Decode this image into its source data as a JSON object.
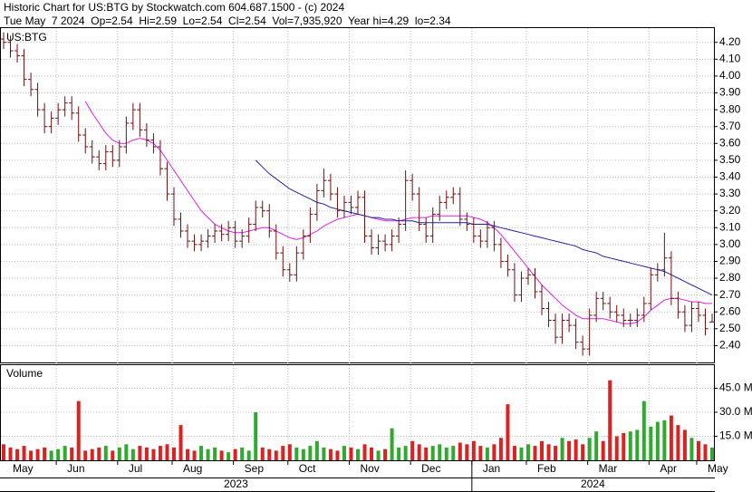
{
  "chart_data": {
    "type": "ohlc",
    "title": "Historic Chart for US:BTG by Stockwatch.com 604.687.1500 - (c) 2024",
    "subtitle": "Tue May  7 2024  Op=2.54  Hi=2.59  Lo=2.54  Cl=2.54  Vol=7,935,920  Year hi=4.29  lo=2.34",
    "symbol": "US:BTG",
    "categories": [
      "May",
      null,
      null,
      null,
      null,
      null,
      null,
      null,
      "Jun",
      null,
      null,
      null,
      null,
      null,
      null,
      null,
      null,
      "Jul",
      null,
      null,
      null,
      null,
      null,
      null,
      null,
      "Aug",
      null,
      null,
      null,
      null,
      null,
      null,
      null,
      null,
      "Sep",
      null,
      null,
      null,
      null,
      null,
      null,
      null,
      "Oct",
      null,
      null,
      null,
      null,
      null,
      null,
      null,
      null,
      "Nov",
      null,
      null,
      null,
      null,
      null,
      null,
      null,
      null,
      "Dec",
      null,
      null,
      null,
      null,
      null,
      null,
      null,
      null,
      "Jan",
      null,
      null,
      null,
      null,
      null,
      null,
      null,
      "Feb",
      null,
      null,
      null,
      null,
      null,
      null,
      null,
      null,
      "Mar",
      null,
      null,
      null,
      null,
      null,
      null,
      null,
      null,
      "Apr",
      null,
      null,
      null,
      null,
      null,
      null,
      "May",
      null,
      null
    ],
    "open": [
      4.22,
      4.2,
      4.15,
      4.12,
      3.98,
      3.92,
      3.8,
      3.7,
      3.75,
      3.8,
      3.84,
      3.78,
      3.65,
      3.58,
      3.52,
      3.48,
      3.55,
      3.5,
      3.58,
      3.72,
      3.8,
      3.68,
      3.62,
      3.58,
      3.45,
      3.3,
      3.15,
      3.08,
      3.02,
      3.0,
      3.02,
      3.05,
      3.08,
      3.06,
      3.1,
      3.02,
      3.05,
      3.12,
      3.22,
      3.2,
      3.08,
      2.95,
      2.85,
      2.82,
      2.95,
      3.05,
      3.18,
      3.32,
      3.38,
      3.3,
      3.2,
      3.25,
      3.22,
      3.28,
      3.05,
      2.98,
      3.02,
      3.0,
      3.05,
      3.12,
      3.38,
      3.3,
      3.12,
      3.05,
      3.18,
      3.25,
      3.28,
      3.3,
      3.15,
      3.12,
      3.05,
      3.02,
      3.1,
      3.0,
      2.9,
      2.85,
      2.7,
      2.8,
      2.82,
      2.72,
      2.62,
      2.55,
      2.45,
      2.55,
      2.52,
      2.42,
      2.38,
      2.58,
      2.68,
      2.65,
      2.6,
      2.58,
      2.55,
      2.55,
      2.58,
      2.65,
      2.82,
      2.85,
      2.92,
      2.68,
      2.6,
      2.52,
      2.62,
      2.58,
      2.54
    ],
    "high": [
      4.26,
      4.24,
      4.19,
      4.16,
      4.02,
      3.96,
      3.84,
      3.79,
      3.84,
      3.88,
      3.88,
      3.82,
      3.69,
      3.62,
      3.56,
      3.59,
      3.59,
      3.62,
      3.76,
      3.84,
      3.84,
      3.72,
      3.66,
      3.62,
      3.49,
      3.34,
      3.19,
      3.12,
      3.06,
      3.06,
      3.09,
      3.12,
      3.12,
      3.14,
      3.14,
      3.09,
      3.16,
      3.26,
      3.26,
      3.24,
      3.12,
      2.99,
      2.89,
      2.99,
      3.09,
      3.22,
      3.36,
      3.45,
      3.42,
      3.34,
      3.29,
      3.29,
      3.32,
      3.32,
      3.09,
      3.06,
      3.06,
      3.09,
      3.16,
      3.44,
      3.42,
      3.34,
      3.16,
      3.22,
      3.29,
      3.32,
      3.34,
      3.34,
      3.19,
      3.16,
      3.09,
      3.14,
      3.14,
      3.04,
      2.94,
      2.89,
      2.84,
      2.86,
      2.86,
      2.76,
      2.66,
      2.59,
      2.59,
      2.59,
      2.56,
      2.46,
      2.62,
      2.72,
      2.72,
      2.69,
      2.64,
      2.62,
      2.59,
      2.62,
      2.69,
      2.86,
      2.89,
      3.07,
      2.96,
      2.72,
      2.64,
      2.66,
      2.66,
      2.62,
      2.59
    ],
    "low": [
      4.16,
      4.11,
      4.08,
      3.94,
      3.88,
      3.76,
      3.66,
      3.66,
      3.71,
      3.76,
      3.74,
      3.61,
      3.54,
      3.48,
      3.44,
      3.44,
      3.46,
      3.46,
      3.54,
      3.68,
      3.64,
      3.58,
      3.54,
      3.41,
      3.26,
      3.11,
      3.04,
      2.98,
      2.96,
      2.96,
      2.98,
      3.01,
      3.02,
      3.02,
      2.98,
      2.98,
      3.01,
      3.08,
      3.16,
      3.04,
      2.91,
      2.81,
      2.78,
      2.78,
      2.91,
      3.01,
      3.14,
      3.28,
      3.26,
      3.16,
      3.16,
      3.18,
      3.18,
      3.01,
      2.94,
      2.94,
      2.96,
      2.96,
      3.01,
      3.08,
      3.26,
      3.08,
      3.01,
      3.01,
      3.14,
      3.21,
      3.24,
      3.11,
      3.08,
      3.01,
      2.98,
      2.98,
      2.96,
      2.86,
      2.81,
      2.66,
      2.66,
      2.76,
      2.68,
      2.58,
      2.51,
      2.41,
      2.41,
      2.48,
      2.38,
      2.34,
      2.34,
      2.54,
      2.61,
      2.56,
      2.54,
      2.51,
      2.51,
      2.51,
      2.54,
      2.61,
      2.78,
      2.81,
      2.64,
      2.56,
      2.48,
      2.48,
      2.54,
      2.46,
      2.54
    ],
    "close": [
      4.2,
      4.15,
      4.12,
      3.98,
      3.92,
      3.8,
      3.7,
      3.75,
      3.8,
      3.84,
      3.78,
      3.65,
      3.58,
      3.52,
      3.48,
      3.55,
      3.5,
      3.58,
      3.72,
      3.8,
      3.68,
      3.62,
      3.58,
      3.45,
      3.3,
      3.15,
      3.08,
      3.02,
      3.0,
      3.02,
      3.05,
      3.08,
      3.06,
      3.1,
      3.02,
      3.05,
      3.12,
      3.22,
      3.2,
      3.08,
      2.95,
      2.85,
      2.82,
      2.95,
      3.05,
      3.18,
      3.32,
      3.38,
      3.3,
      3.2,
      3.25,
      3.22,
      3.28,
      3.05,
      2.98,
      3.02,
      3.0,
      3.05,
      3.12,
      3.38,
      3.3,
      3.12,
      3.05,
      3.18,
      3.25,
      3.28,
      3.3,
      3.15,
      3.12,
      3.05,
      3.02,
      3.1,
      3.0,
      2.9,
      2.85,
      2.7,
      2.8,
      2.82,
      2.72,
      2.62,
      2.55,
      2.45,
      2.55,
      2.52,
      2.42,
      2.38,
      2.58,
      2.68,
      2.65,
      2.6,
      2.58,
      2.55,
      2.55,
      2.58,
      2.65,
      2.82,
      2.85,
      2.92,
      2.68,
      2.6,
      2.52,
      2.62,
      2.58,
      2.5,
      2.54
    ],
    "color": "#6b1010",
    "ylim": [
      2.3,
      4.29
    ],
    "yticks": [
      {
        "value": 2.4,
        "label": "2.40"
      },
      {
        "value": 2.5,
        "label": "2.50"
      },
      {
        "value": 2.6,
        "label": "2.60"
      },
      {
        "value": 2.7,
        "label": "2.70"
      },
      {
        "value": 2.8,
        "label": "2.80"
      },
      {
        "value": 2.9,
        "label": "2.90"
      },
      {
        "value": 3.0,
        "label": "3.00"
      },
      {
        "value": 3.1,
        "label": "3.10"
      },
      {
        "value": 3.2,
        "label": "3.20"
      },
      {
        "value": 3.3,
        "label": "3.30"
      },
      {
        "value": 3.4,
        "label": "3.40"
      },
      {
        "value": 3.5,
        "label": "3.50"
      },
      {
        "value": 3.6,
        "label": "3.60"
      },
      {
        "value": 3.7,
        "label": "3.70"
      },
      {
        "value": 3.8,
        "label": "3.80"
      },
      {
        "value": 3.9,
        "label": "3.90"
      },
      {
        "value": 4.0,
        "label": "4.00"
      },
      {
        "value": 4.1,
        "label": "4.10"
      },
      {
        "value": 4.2,
        "label": "4.20"
      }
    ],
    "grid": true,
    "moving_averages": [
      {
        "color": "#e020e0",
        "values": [
          null,
          null,
          null,
          null,
          null,
          null,
          null,
          null,
          null,
          null,
          null,
          null,
          3.85,
          3.78,
          3.72,
          3.66,
          3.62,
          3.6,
          3.6,
          3.62,
          3.63,
          3.62,
          3.6,
          3.56,
          3.5,
          3.44,
          3.38,
          3.32,
          3.26,
          3.2,
          3.16,
          3.12,
          3.1,
          3.08,
          3.07,
          3.07,
          3.08,
          3.09,
          3.1,
          3.1,
          3.08,
          3.06,
          3.04,
          3.03,
          3.04,
          3.06,
          3.08,
          3.11,
          3.13,
          3.15,
          3.16,
          3.17,
          3.18,
          3.17,
          3.16,
          3.15,
          3.14,
          3.14,
          3.14,
          3.15,
          3.16,
          3.16,
          3.16,
          3.17,
          3.17,
          3.17,
          3.17,
          3.17,
          3.17,
          3.16,
          3.15,
          3.13,
          3.1,
          3.06,
          3.01,
          2.96,
          2.91,
          2.86,
          2.81,
          2.76,
          2.72,
          2.68,
          2.64,
          2.61,
          2.58,
          2.56,
          2.56,
          2.56,
          2.56,
          2.55,
          2.54,
          2.53,
          2.53,
          2.54,
          2.57,
          2.61,
          2.64,
          2.67,
          2.68,
          2.68,
          2.67,
          2.66,
          2.66,
          2.65,
          2.65
        ]
      },
      {
        "color": "#2020a0",
        "values": [
          null,
          null,
          null,
          null,
          null,
          null,
          null,
          null,
          null,
          null,
          null,
          null,
          null,
          null,
          null,
          null,
          null,
          null,
          null,
          null,
          null,
          null,
          null,
          null,
          null,
          null,
          null,
          null,
          null,
          null,
          null,
          null,
          null,
          null,
          null,
          null,
          null,
          3.5,
          3.46,
          3.42,
          3.39,
          3.36,
          3.33,
          3.31,
          3.29,
          3.27,
          3.25,
          3.24,
          3.22,
          3.21,
          3.2,
          3.19,
          3.18,
          3.17,
          3.16,
          3.16,
          3.15,
          3.15,
          3.14,
          3.14,
          3.14,
          3.13,
          3.13,
          3.13,
          3.13,
          3.13,
          3.13,
          3.13,
          3.13,
          3.12,
          3.12,
          3.12,
          3.11,
          3.1,
          3.09,
          3.08,
          3.07,
          3.06,
          3.05,
          3.04,
          3.03,
          3.02,
          3.01,
          3.0,
          2.99,
          2.97,
          2.96,
          2.95,
          2.93,
          2.92,
          2.91,
          2.9,
          2.89,
          2.88,
          2.87,
          2.86,
          2.85,
          2.84,
          2.82,
          2.8,
          2.78,
          2.76,
          2.74,
          2.72,
          2.7
        ]
      }
    ],
    "volume": {
      "label": "Volume",
      "values": [
        10,
        8,
        7,
        9,
        6,
        7,
        8,
        6,
        7,
        9,
        8,
        37,
        6,
        7,
        8,
        9,
        6,
        8,
        10,
        7,
        9,
        8,
        7,
        9,
        10,
        8,
        22,
        7,
        6,
        9,
        7,
        8,
        6,
        5,
        7,
        8,
        6,
        30,
        8,
        7,
        6,
        9,
        10,
        8,
        7,
        9,
        12,
        8,
        7,
        6,
        9,
        8,
        7,
        10,
        8,
        6,
        7,
        20,
        8,
        9,
        12,
        10,
        8,
        9,
        10,
        8,
        9,
        11,
        10,
        12,
        9,
        8,
        10,
        14,
        35,
        9,
        8,
        10,
        9,
        12,
        10,
        9,
        14,
        12,
        13,
        10,
        14,
        18,
        12,
        50,
        15,
        17,
        18,
        19,
        37,
        21,
        24,
        25,
        28,
        22,
        19,
        14,
        12,
        10,
        7.94
      ],
      "up_color": "#2faa2f",
      "down_color": "#dd2020",
      "ylim": [
        0,
        60
      ],
      "yticks": [
        {
          "value": 15,
          "label": "15.0 M"
        },
        {
          "value": 30,
          "label": "30.0 M"
        },
        {
          "value": 45,
          "label": "45.0 M"
        }
      ]
    },
    "years": [
      "2023",
      "2024"
    ]
  }
}
